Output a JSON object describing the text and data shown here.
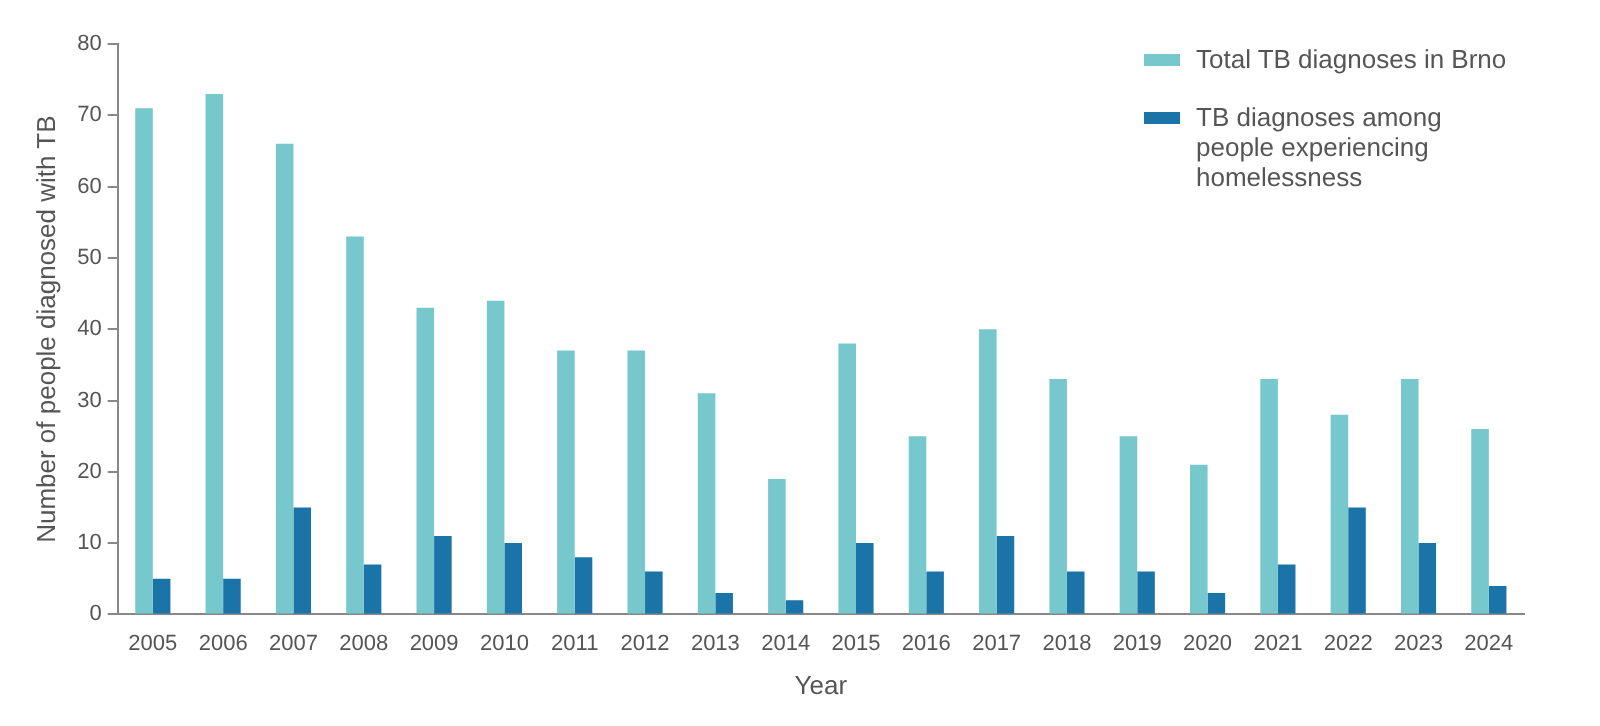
{
  "chart_data": {
    "type": "bar",
    "xlabel": "Year",
    "ylabel": "Number of people diagnosed with TB",
    "categories": [
      "2005",
      "2006",
      "2007",
      "2008",
      "2009",
      "2010",
      "2011",
      "2012",
      "2013",
      "2014",
      "2015",
      "2016",
      "2017",
      "2018",
      "2019",
      "2020",
      "2021",
      "2022",
      "2023",
      "2024"
    ],
    "series": [
      {
        "name": "Total TB diagnoses in Brno",
        "color": "#76c8cc",
        "values": [
          71,
          73,
          66,
          53,
          43,
          44,
          37,
          37,
          31,
          19,
          38,
          25,
          40,
          33,
          25,
          21,
          33,
          28,
          33,
          26
        ]
      },
      {
        "name": "TB diagnoses among people experiencing homelessness",
        "color": "#1a74a8",
        "values": [
          5,
          5,
          15,
          7,
          11,
          10,
          8,
          6,
          3,
          2,
          10,
          6,
          11,
          6,
          6,
          3,
          7,
          15,
          10,
          4
        ]
      }
    ],
    "ylim": [
      0,
      80
    ],
    "yticks": [
      0,
      10,
      20,
      30,
      40,
      50,
      60,
      70,
      80
    ],
    "grid": false,
    "legend": "top right"
  }
}
